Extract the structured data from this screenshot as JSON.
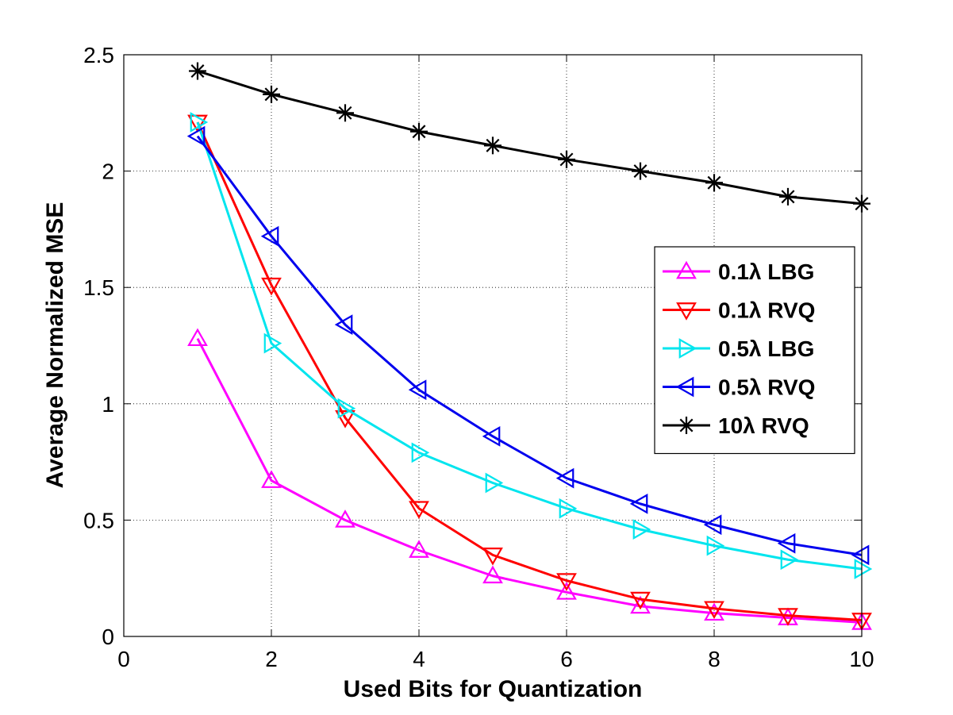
{
  "chart_data": {
    "type": "line",
    "title": "",
    "xlabel": "Used Bits for Quantization",
    "ylabel": "Average Normalized MSE",
    "xlim": [
      0,
      10
    ],
    "ylim": [
      0,
      2.5
    ],
    "xticks": [
      0,
      2,
      4,
      6,
      8,
      10
    ],
    "yticks": [
      0,
      0.5,
      1,
      1.5,
      2,
      2.5
    ],
    "xtick_labels": [
      "0",
      "2",
      "4",
      "6",
      "8",
      "10"
    ],
    "ytick_labels": [
      "0",
      "0.5",
      "1",
      "1.5",
      "2",
      "2.5"
    ],
    "grid": true,
    "legend_position": "right",
    "x": [
      1,
      2,
      3,
      4,
      5,
      6,
      7,
      8,
      9,
      10
    ],
    "series": [
      {
        "name": "0.1λ LBG",
        "color": "#ff00ff",
        "marker": "triangle-up",
        "values": [
          1.28,
          0.67,
          0.5,
          0.37,
          0.26,
          0.19,
          0.13,
          0.1,
          0.08,
          0.06
        ]
      },
      {
        "name": "0.1λ RVQ",
        "color": "#ff0000",
        "marker": "triangle-down",
        "values": [
          2.21,
          1.51,
          0.94,
          0.55,
          0.35,
          0.24,
          0.16,
          0.12,
          0.09,
          0.07
        ]
      },
      {
        "name": "0.5λ LBG",
        "color": "#00e5ee",
        "marker": "triangle-right",
        "values": [
          2.21,
          1.26,
          0.98,
          0.79,
          0.66,
          0.55,
          0.46,
          0.39,
          0.33,
          0.29
        ]
      },
      {
        "name": "0.5λ RVQ",
        "color": "#0000ee",
        "marker": "triangle-left",
        "values": [
          2.15,
          1.72,
          1.34,
          1.06,
          0.86,
          0.68,
          0.57,
          0.48,
          0.4,
          0.35
        ]
      },
      {
        "name": "10λ RVQ",
        "color": "#000000",
        "marker": "asterisk",
        "values": [
          2.43,
          2.33,
          2.25,
          2.17,
          2.11,
          2.05,
          2.0,
          1.95,
          1.89,
          1.86
        ]
      }
    ]
  }
}
